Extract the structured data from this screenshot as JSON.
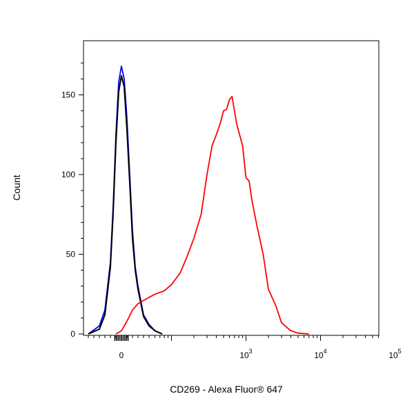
{
  "chart_data": {
    "type": "line",
    "title": "",
    "xlabel": "CD269 - Alexa Fluor® 647",
    "ylabel": "Count",
    "ylim": [
      0,
      175
    ],
    "y_ticks": [
      0,
      50,
      100,
      150
    ],
    "x_scale": "biexponential",
    "x_ticks": [
      {
        "value": 0,
        "base": "0",
        "exp": ""
      },
      {
        "value": 1000,
        "base": "10",
        "exp": "3"
      },
      {
        "value": 10000,
        "base": "10",
        "exp": "4"
      },
      {
        "value": 100000,
        "base": "10",
        "exp": "5"
      }
    ],
    "grid": false,
    "legend": "none",
    "series": [
      {
        "color": "#0000ff",
        "x": [
          -60,
          -40,
          -30,
          -20,
          -15,
          -10,
          -5,
          0,
          5,
          10,
          15,
          20,
          25,
          30,
          40,
          50,
          60,
          75
        ],
        "y": [
          0,
          5,
          15,
          45,
          80,
          125,
          158,
          168,
          160,
          135,
          100,
          65,
          42,
          30,
          12,
          6,
          2,
          0
        ]
      },
      {
        "color": "#000000",
        "x": [
          -60,
          -40,
          -30,
          -20,
          -15,
          -10,
          -5,
          0,
          5,
          10,
          15,
          20,
          25,
          30,
          40,
          50,
          60,
          75
        ],
        "y": [
          0,
          3,
          12,
          42,
          76,
          120,
          152,
          162,
          155,
          128,
          95,
          60,
          40,
          28,
          11,
          5,
          2,
          0
        ]
      },
      {
        "color": "#ff0000",
        "x": [
          -10,
          0,
          10,
          20,
          30,
          40,
          50,
          60,
          80,
          100,
          130,
          160,
          200,
          250,
          300,
          350,
          400,
          450,
          500,
          550,
          600,
          650,
          700,
          750,
          800,
          900,
          1000,
          1100,
          1200,
          1400,
          1700,
          2000,
          2500,
          3000,
          4000,
          5000,
          7000
        ],
        "y": [
          0,
          2,
          8,
          15,
          19,
          21,
          23,
          25,
          27,
          31,
          38,
          48,
          60,
          75,
          100,
          118,
          125,
          132,
          140,
          141,
          147,
          149,
          140,
          132,
          127,
          118,
          98,
          96,
          84,
          68,
          50,
          28,
          18,
          7,
          2,
          0.5,
          0
        ]
      }
    ]
  }
}
